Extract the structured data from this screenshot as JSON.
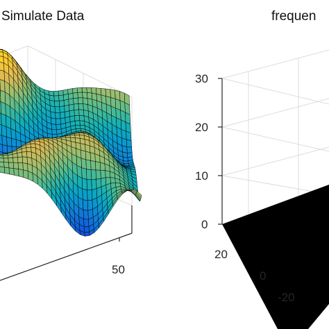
{
  "chart_data": [
    {
      "type": "surface",
      "title": "Simulate Data",
      "colormap": "parula",
      "x_ticks": [
        "50"
      ],
      "grid": true
    },
    {
      "type": "surface",
      "title": "frequen",
      "z_ticks": [
        "30",
        "20",
        "10",
        "0"
      ],
      "y_ticks": [
        "20",
        "0",
        "-20"
      ],
      "z_range": [
        0,
        30
      ],
      "y_range": [
        -20,
        20
      ],
      "surface_color": "#000000",
      "grid": true
    }
  ],
  "colors": {
    "grid": "#dcdcdc",
    "axis": "#262626",
    "edges": "#000000",
    "background": "#ffffff"
  }
}
